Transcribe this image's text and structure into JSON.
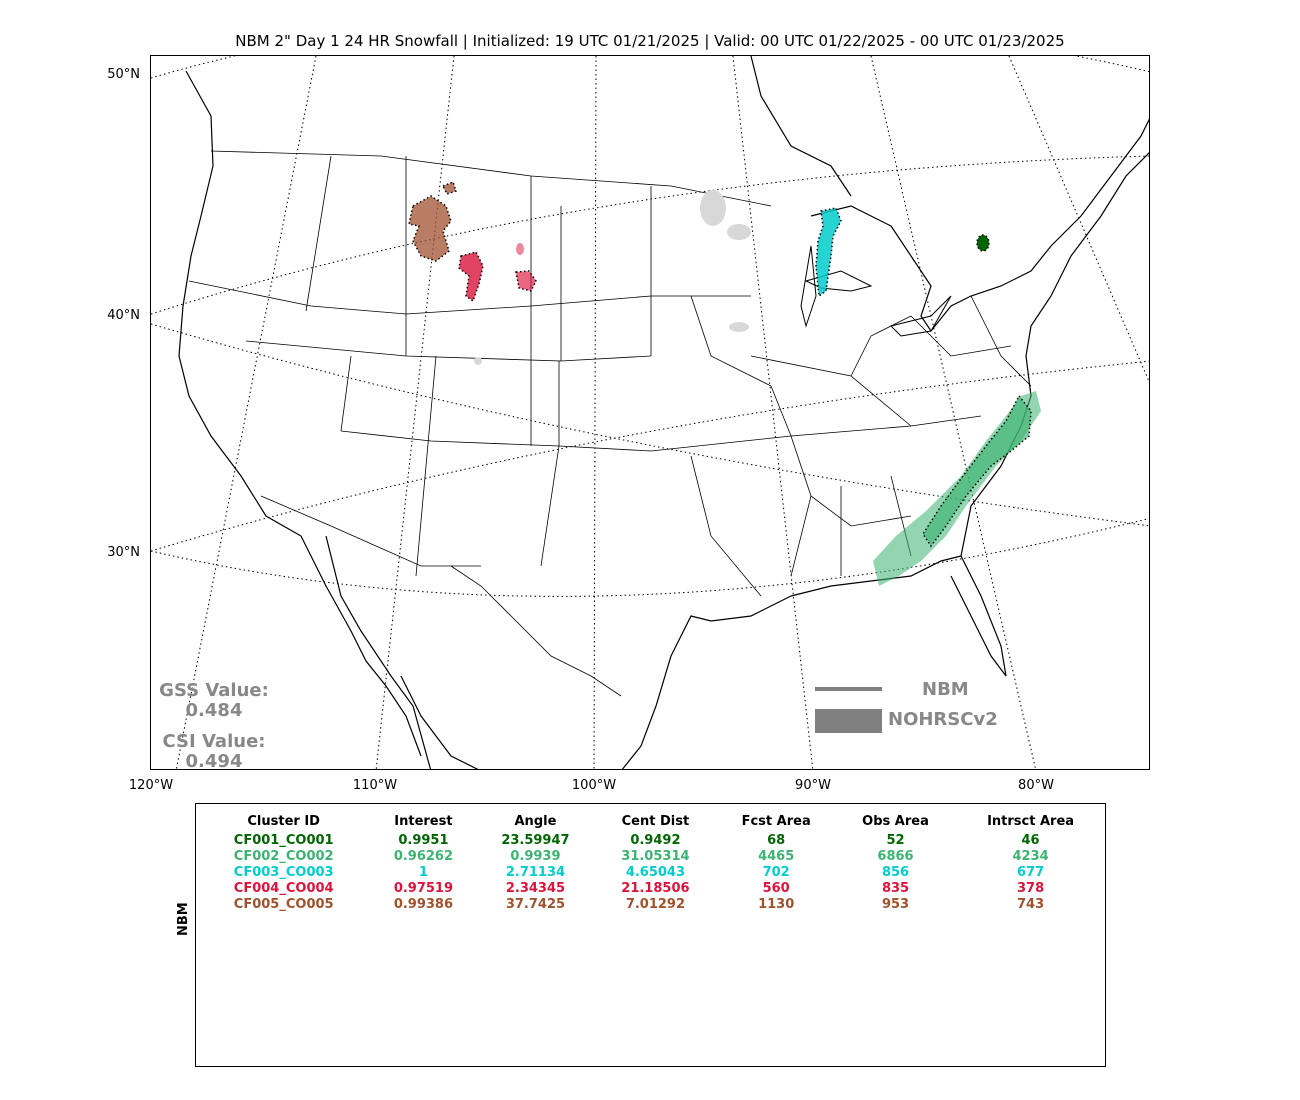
{
  "title": "NBM 2\" Day 1 24 HR Snowfall | Initialized: 19 UTC 01/21/2025 | Valid: 00 UTC 01/22/2025 - 00 UTC 01/23/2025",
  "lat_labels": [
    "50°N",
    "40°N",
    "30°N"
  ],
  "lon_labels": [
    "120°W",
    "110°W",
    "100°W",
    "90°W",
    "80°W"
  ],
  "scores": {
    "gss_label": "GSS Value:",
    "gss_value": "0.484",
    "csi_label": "CSI Value:",
    "csi_value": "0.494"
  },
  "legend": {
    "line_label": "NBM",
    "box_label": "NOHRSCv2"
  },
  "side_label": "NBM",
  "table": {
    "headers": [
      "Cluster ID",
      "Interest",
      "Angle",
      "Cent Dist",
      "Fcst Area",
      "Obs Area",
      "Intrsct Area"
    ],
    "rows": [
      {
        "color": "#006400",
        "cells": [
          "CF001_CO001",
          "0.9951",
          "23.59947",
          "0.9492",
          "68",
          "52",
          "46"
        ]
      },
      {
        "color": "#3cb371",
        "cells": [
          "CF002_CO002",
          "0.96262",
          "0.9939",
          "31.05314",
          "4465",
          "6866",
          "4234"
        ]
      },
      {
        "color": "#00cccc",
        "cells": [
          "CF003_CO003",
          "1",
          "2.71134",
          "4.65043",
          "702",
          "856",
          "677"
        ]
      },
      {
        "color": "#dc143c",
        "cells": [
          "CF004_CO004",
          "0.97519",
          "2.34345",
          "21.18506",
          "560",
          "835",
          "378"
        ]
      },
      {
        "color": "#a0522d",
        "cells": [
          "CF005_CO005",
          "0.99386",
          "37.7425",
          "7.01292",
          "1130",
          "953",
          "743"
        ]
      }
    ]
  },
  "colors": {
    "cluster1": "#006400",
    "cluster2": "#3cb371",
    "cluster3": "#00cccc",
    "cluster4": "#dc143c",
    "cluster5": "#a0522d",
    "unmatched_obs": "#d8d8d8",
    "legend_gray": "#808080"
  }
}
